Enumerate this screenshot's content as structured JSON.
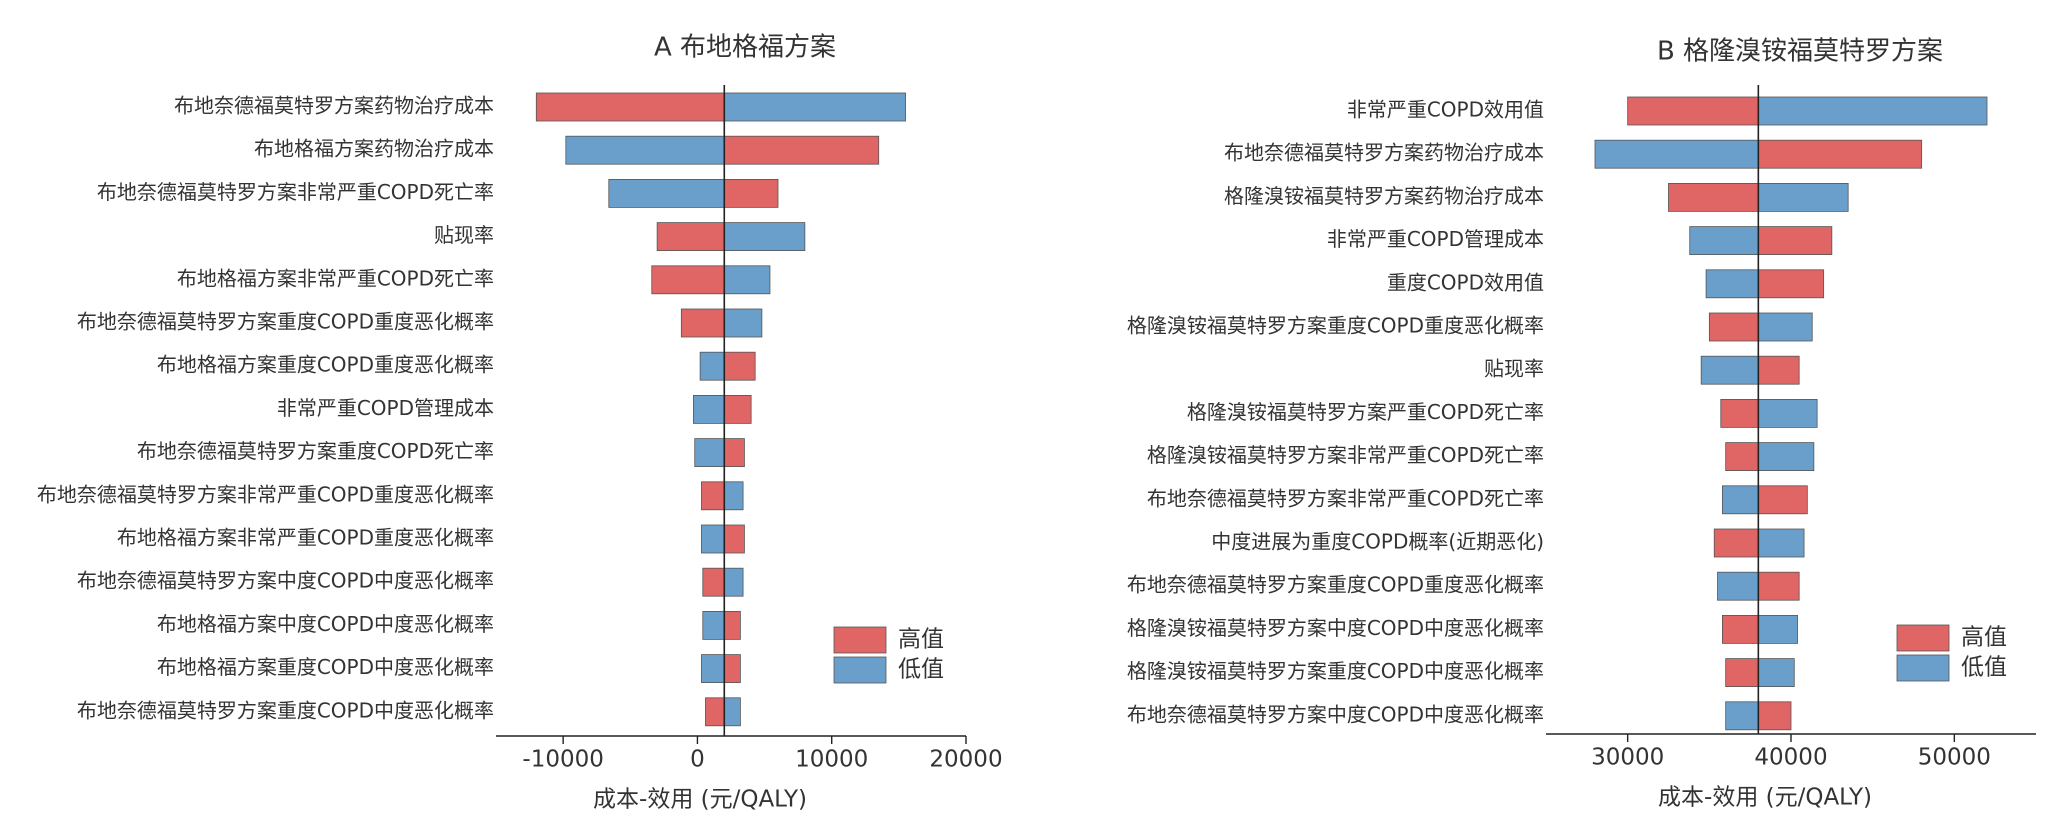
{
  "chart_data": [
    {
      "type": "bar",
      "title": "A 布地格福方案",
      "xlabel": "成本-效用 (元/QALY)",
      "xlim": [
        -15000,
        20000
      ],
      "xticks": [
        -10000,
        0,
        10000,
        20000
      ],
      "xtick_labels": [
        "-10000",
        "0",
        "10000",
        "20000"
      ],
      "base": 2000,
      "legend_position": "bottom-right",
      "legend": {
        "high_label": "高值",
        "low_label": "低值"
      },
      "colors": {
        "high": "#E06666",
        "low": "#6A9FCC"
      },
      "series": [
        {
          "name": "高值",
          "values": [
            -12000,
            13500,
            6000,
            -3000,
            -3400,
            -1200,
            4300,
            4000,
            3500,
            300,
            3500,
            400,
            3200,
            3200,
            600
          ]
        },
        {
          "name": "低值",
          "values": [
            15500,
            -9800,
            -6600,
            8000,
            5400,
            4800,
            200,
            -300,
            -200,
            3400,
            300,
            3400,
            400,
            300,
            3200
          ]
        }
      ],
      "categories": [
        "布地奈德福莫特罗方案药物治疗成本",
        "布地格福方案药物治疗成本",
        "布地奈德福莫特罗方案非常严重COPD死亡率",
        "贴现率",
        "布地格福方案非常严重COPD死亡率",
        "布地奈德福莫特罗方案重度COPD重度恶化概率",
        "布地格福方案重度COPD重度恶化概率",
        "非常严重COPD管理成本",
        "布地奈德福莫特罗方案重度COPD死亡率",
        "布地奈德福莫特罗方案非常严重COPD重度恶化概率",
        "布地格福方案非常严重COPD重度恶化概率",
        "布地奈德福莫特罗方案中度COPD中度恶化概率",
        "布地格福方案中度COPD中度恶化概率",
        "布地格福方案重度COPD中度恶化概率",
        "布地奈德福莫特罗方案重度COPD中度恶化概率"
      ]
    },
    {
      "type": "bar",
      "title": "B 格隆溴铵福莫特罗方案",
      "xlabel": "成本-效用 (元/QALY)",
      "xlim": [
        25000,
        55000
      ],
      "xticks": [
        30000,
        40000,
        50000
      ],
      "xtick_labels": [
        "30000",
        "40000",
        "50000"
      ],
      "base": 38000,
      "legend_position": "bottom-right",
      "legend": {
        "high_label": "高值",
        "low_label": "低值"
      },
      "colors": {
        "high": "#E06666",
        "low": "#6A9FCC"
      },
      "series": [
        {
          "name": "高值",
          "values": [
            30000,
            48000,
            32500,
            42500,
            42000,
            35000,
            40500,
            35700,
            36000,
            41000,
            35300,
            40500,
            35800,
            36000,
            40000
          ]
        },
        {
          "name": "低值",
          "values": [
            52000,
            28000,
            43500,
            33800,
            34800,
            41300,
            34500,
            41600,
            41400,
            35800,
            40800,
            35500,
            40400,
            40200,
            36000
          ]
        }
      ],
      "categories": [
        "非常严重COPD效用值",
        "布地奈德福莫特罗方案药物治疗成本",
        "格隆溴铵福莫特罗方案药物治疗成本",
        "非常严重COPD管理成本",
        "重度COPD效用值",
        "格隆溴铵福莫特罗方案重度COPD重度恶化概率",
        "贴现率",
        "格隆溴铵福莫特罗方案严重COPD死亡率",
        "格隆溴铵福莫特罗方案非常严重COPD死亡率",
        "布地奈德福莫特罗方案非常严重COPD死亡率",
        "中度进展为重度COPD概率(近期恶化)",
        "布地奈德福莫特罗方案重度COPD重度恶化概率",
        "格隆溴铵福莫特罗方案中度COPD中度恶化概率",
        "格隆溴铵福莫特罗方案重度COPD中度恶化概率",
        "布地奈德福莫特罗方案中度COPD中度恶化概率"
      ]
    }
  ]
}
